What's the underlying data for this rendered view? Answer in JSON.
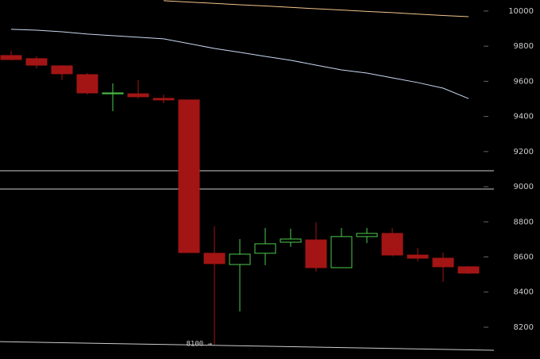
{
  "chart_data": {
    "type": "candlestick",
    "up_color": "#4ccc4c",
    "down_color": "#a31515",
    "open": [
      9747,
      9729,
      9688,
      9638,
      9529,
      9529,
      9503,
      9494,
      8621,
      8557,
      8621,
      8684,
      8697,
      8539,
      8716,
      8734,
      8611,
      8593,
      8544
    ],
    "high": [
      9774,
      9742,
      9692,
      9647,
      9588,
      9607,
      9525,
      9494,
      8774,
      8702,
      8765,
      8761,
      8797,
      8765,
      8765,
      8765,
      8652,
      8625,
      8548
    ],
    "low": [
      9720,
      9674,
      9607,
      9525,
      9430,
      9503,
      9475,
      8625,
      8100,
      8290,
      8553,
      8657,
      8517,
      8539,
      8679,
      8603,
      8575,
      8458,
      8503
    ],
    "close": [
      9724,
      9692,
      9643,
      9534,
      9534,
      9512,
      9494,
      8625,
      8562,
      8616,
      8675,
      8702,
      8539,
      8716,
      8734,
      8611,
      8593,
      8544,
      8508
    ],
    "lines": [
      {
        "color": "#f2c58a",
        "values": [
          null,
          null,
          null,
          null,
          null,
          null,
          10059,
          10051,
          10044,
          10036,
          10029,
          10021,
          10013,
          10006,
          9998,
          9991,
          9983,
          9975,
          9968
        ]
      },
      {
        "color": "#c8d8f0",
        "values": [
          9896,
          9891,
          9882,
          9869,
          9860,
          9851,
          9842,
          9815,
          9787,
          9765,
          9742,
          9720,
          9692,
          9665,
          9647,
          9620,
          9593,
          9561,
          9502
        ]
      }
    ],
    "levels": [
      9091,
      8987
    ],
    "trendline": [
      8118,
      8069
    ],
    "annotation": "8100 →",
    "ylim": [
      8019,
      10063
    ],
    "yticks": [
      8200,
      8400,
      8600,
      8800,
      9000,
      9200,
      9400,
      9600,
      9800,
      10000
    ]
  }
}
